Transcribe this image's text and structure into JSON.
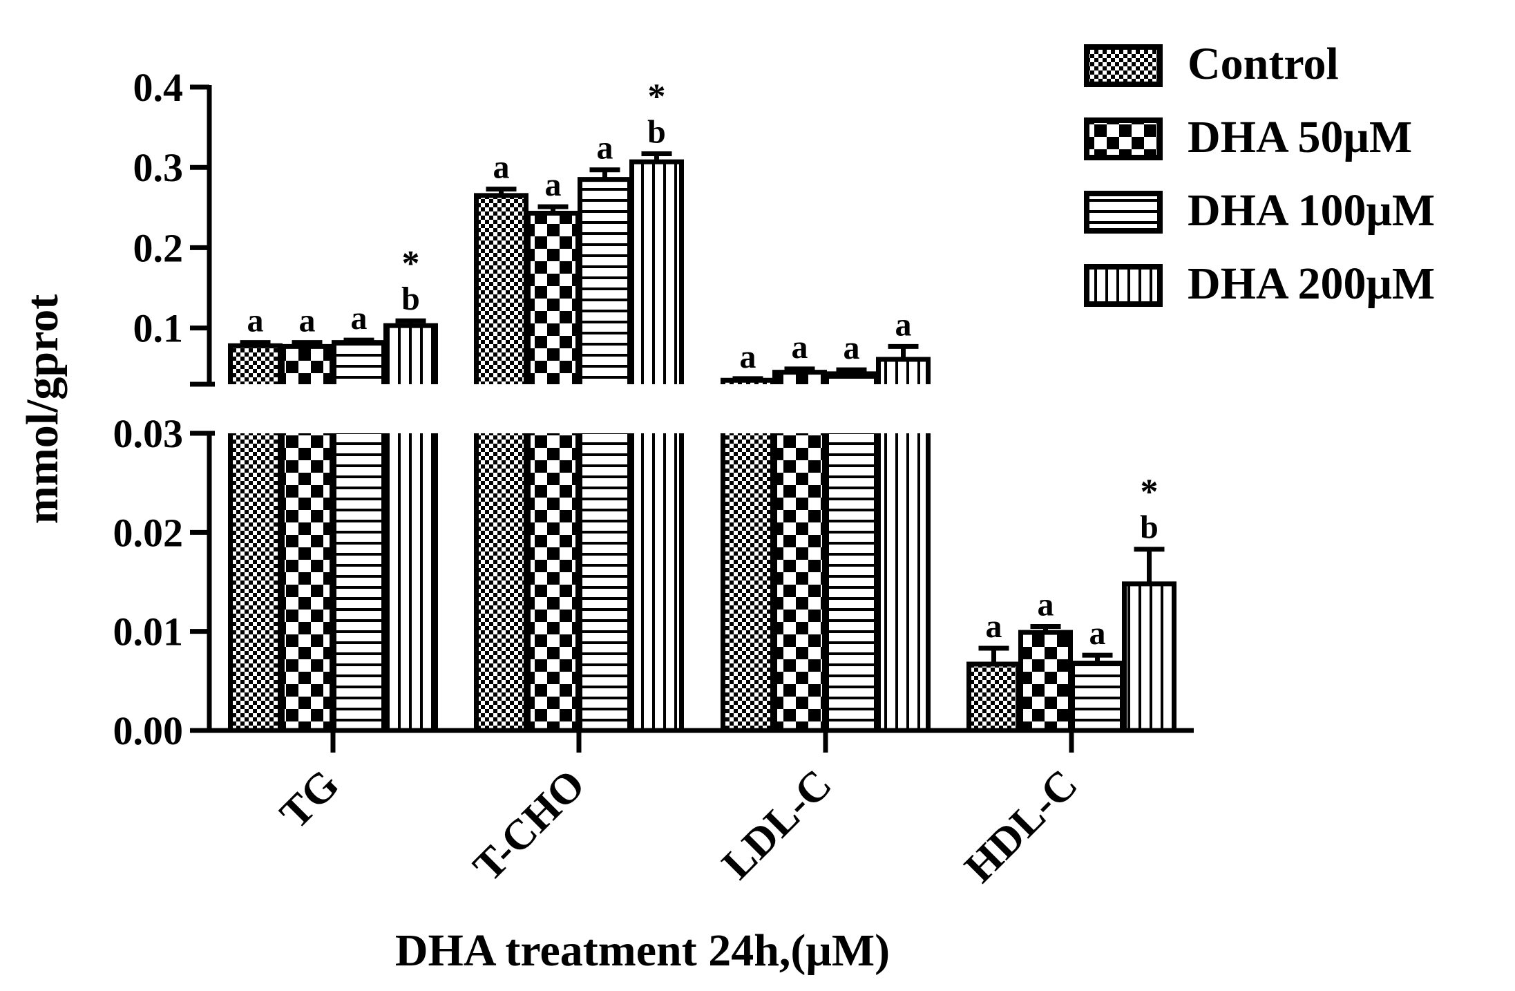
{
  "chart_data": {
    "type": "bar",
    "title": "",
    "xlabel": "DHA treatment 24h,(μM)",
    "ylabel": "mmol/gprot",
    "categories": [
      "TG",
      "T-CHO",
      "LDL-C",
      "HDL-C"
    ],
    "axis_break": {
      "upper_range": [
        0.03,
        0.4
      ],
      "upper_ticks": [
        "0.1",
        "0.2",
        "0.3",
        "0.4"
      ],
      "upper_tick_values": [
        0.1,
        0.2,
        0.3,
        0.4
      ],
      "lower_range": [
        0,
        0.03
      ],
      "lower_ticks": [
        "0.00",
        "0.01",
        "0.02",
        "0.03"
      ],
      "lower_tick_values": [
        0,
        0.01,
        0.02,
        0.03
      ]
    },
    "series": [
      {
        "name": "Control",
        "pattern": "fine-checker",
        "values": [
          0.078,
          0.265,
          0.035,
          0.0067
        ],
        "errors": [
          0.004,
          0.008,
          0.002,
          0.0016
        ],
        "labels": [
          "a",
          "a",
          "a",
          "a"
        ],
        "stars": [
          "",
          "",
          "",
          ""
        ]
      },
      {
        "name": "DHA 50μM",
        "pattern": "coarse-checker",
        "values": [
          0.077,
          0.243,
          0.045,
          0.0099
        ],
        "errors": [
          0.005,
          0.008,
          0.004,
          0.0006
        ],
        "labels": [
          "a",
          "a",
          "a",
          "a"
        ],
        "stars": [
          "",
          "",
          "",
          ""
        ]
      },
      {
        "name": "DHA 100μM",
        "pattern": "horizontal-lines",
        "values": [
          0.082,
          0.285,
          0.043,
          0.0068
        ],
        "errors": [
          0.003,
          0.012,
          0.005,
          0.0008
        ],
        "labels": [
          "a",
          "a",
          "a",
          "a"
        ],
        "stars": [
          "",
          "",
          "",
          ""
        ]
      },
      {
        "name": "DHA 200μM",
        "pattern": "vertical-lines",
        "values": [
          0.103,
          0.307,
          0.061,
          0.0148
        ],
        "errors": [
          0.006,
          0.01,
          0.016,
          0.0035
        ],
        "labels": [
          "b",
          "b",
          "a",
          "b"
        ],
        "stars": [
          "*",
          "*",
          "",
          "*"
        ]
      }
    ],
    "legend_position": "top-right"
  }
}
